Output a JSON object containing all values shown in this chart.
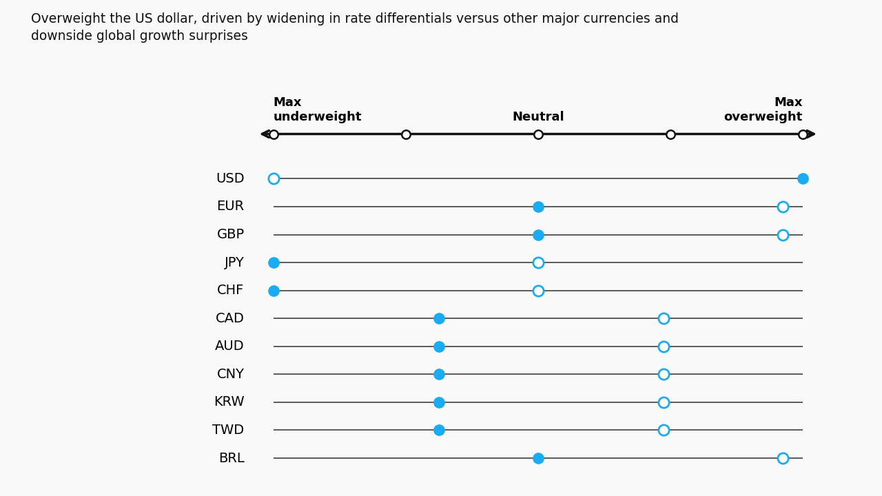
{
  "subtitle": "Overweight the US dollar, driven by widening in rate differentials versus other major currencies and\ndownside global growth surprises",
  "scale_min": 0,
  "scale_max": 4,
  "scale_ticks": [
    0,
    1,
    2,
    3,
    4
  ],
  "currencies": [
    "USD",
    "EUR",
    "GBP",
    "JPY",
    "CHF",
    "CAD",
    "AUD",
    "CNY",
    "KRW",
    "TWD",
    "BRL"
  ],
  "filled_dot_pos": [
    4.0,
    2.0,
    2.0,
    0.0,
    0.0,
    1.25,
    1.25,
    1.25,
    1.25,
    1.25,
    2.0
  ],
  "open_dot_pos": [
    0.0,
    3.85,
    3.85,
    2.0,
    2.0,
    2.95,
    2.95,
    2.95,
    2.95,
    2.95,
    3.85
  ],
  "filled_color": "#1AABF0",
  "open_color": "#1AABF0",
  "line_color": "#404040",
  "axis_line_color": "#111111",
  "background_color": "#f9f9f9",
  "subtitle_fontsize": 13.5,
  "label_fontsize": 14,
  "tick_label_fontsize": 13,
  "dot_size": 11,
  "axis_dot_size": 9
}
